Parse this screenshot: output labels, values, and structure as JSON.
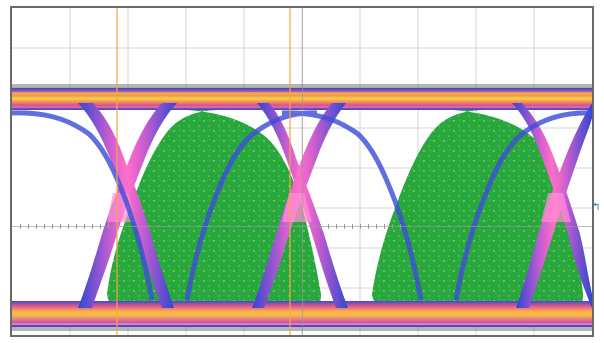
{
  "scope_display": {
    "screen": "eye-diagram",
    "bit_periods_shown": 2,
    "graticule": {
      "divisions_x": 10,
      "divisions_y": 8
    },
    "colors": {
      "eye_fill": "#24a63c",
      "persistence_hot": "#f3c62a",
      "persistence_mid": "#e8557f",
      "persistence_cold": "#3246d0",
      "cursor": "#f2a646",
      "grid": "#d4d4d4",
      "frame": "#6a6a6a",
      "marker": "#2a6fd0"
    },
    "channel_ref_marker": {
      "label": "↰",
      "icon": "channel-ground-reference-icon"
    }
  }
}
